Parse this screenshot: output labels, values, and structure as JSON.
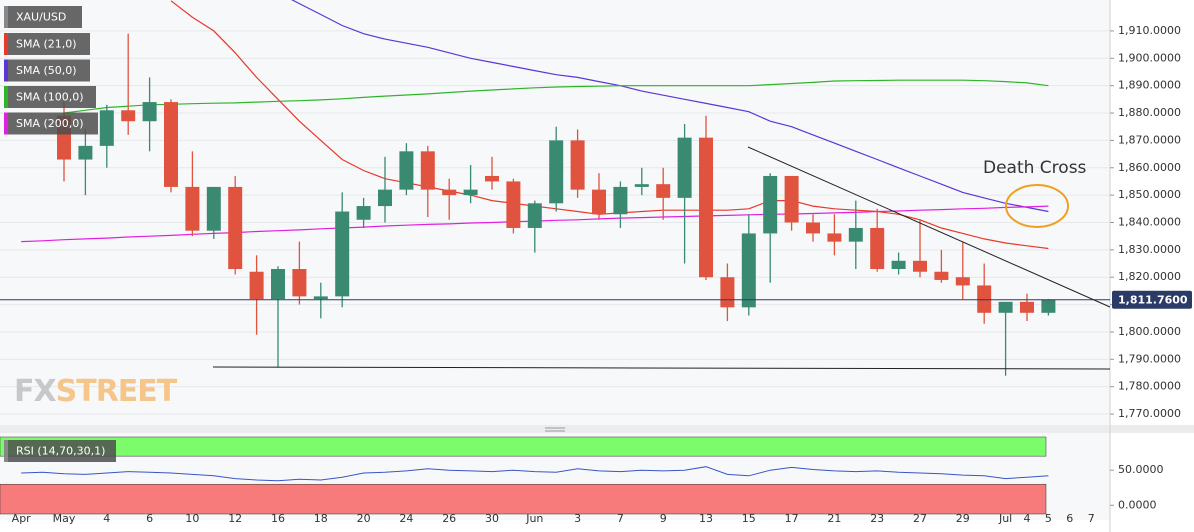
{
  "chart_data": {
    "type": "candlestick",
    "symbol": "XAU/USD",
    "watermark": [
      "FX",
      "STREET"
    ],
    "categories": [
      "Apr",
      null,
      "May",
      null,
      "4",
      null,
      "6",
      null,
      "10",
      null,
      "12",
      null,
      "16",
      null,
      "18",
      null,
      "20",
      null,
      "24",
      null,
      "26",
      null,
      "30",
      null,
      "Jun",
      null,
      "3",
      null,
      "7",
      null,
      "9",
      null,
      "13",
      null,
      "15",
      null,
      "17",
      null,
      "21",
      null,
      "23",
      null,
      "27",
      null,
      "29",
      null,
      "Jul",
      "4",
      "5",
      "6",
      "7"
    ],
    "open": [
      null,
      null,
      1879,
      1863,
      1868,
      1881,
      1877,
      1884,
      1853,
      1837,
      1853,
      1822,
      1812,
      1823,
      1812,
      1813,
      1841,
      1846,
      1852,
      1866,
      1852,
      1850,
      1857,
      1855,
      1838,
      1847,
      1870,
      1852,
      1843,
      1853,
      1854,
      1849,
      1871,
      1820,
      1809,
      1836,
      1857,
      1840,
      1836,
      1833,
      1838,
      1823,
      1826,
      1822,
      1820,
      1817,
      1807,
      1811,
      1807,
      null,
      null
    ],
    "high": [
      null,
      null,
      1884,
      1874,
      1883,
      1909,
      1893,
      1885,
      1866,
      1853,
      1857,
      1828,
      1824,
      1833,
      1818,
      1851,
      1849,
      1864,
      1869,
      1868,
      1856,
      1861,
      1864,
      1856,
      1848,
      1875,
      1874,
      1858,
      1855,
      1860,
      1860,
      1876,
      1879,
      1825,
      1843,
      1858,
      1857,
      1843,
      1843,
      1848,
      1845,
      1829,
      1841,
      1830,
      1833,
      1825,
      1811,
      1814,
      1812,
      null,
      null
    ],
    "low": [
      null,
      null,
      1855,
      1850,
      1860,
      1872,
      1866,
      1851,
      1835,
      1834,
      1821,
      1799,
      1787,
      1810,
      1805,
      1809,
      1838,
      1840,
      1850,
      1842,
      1841,
      1847,
      1852,
      1836,
      1829,
      1844,
      1849,
      1841,
      1838,
      1850,
      1841,
      1825,
      1819,
      1804,
      1806,
      1818,
      1837,
      1833,
      1828,
      1823,
      1822,
      1821,
      1820,
      1818,
      1812,
      1803,
      1784,
      1804,
      1806,
      null,
      null
    ],
    "close": [
      null,
      null,
      1863,
      1868,
      1881,
      1877,
      1884,
      1853,
      1837,
      1853,
      1823,
      1812,
      1823,
      1813,
      1813,
      1844,
      1846,
      1852,
      1866,
      1852,
      1850,
      1852,
      1855,
      1838,
      1847,
      1870,
      1852,
      1843,
      1853,
      1854,
      1849,
      1871,
      1820,
      1809,
      1836,
      1857,
      1840,
      1836,
      1833,
      1838,
      1823,
      1826,
      1822,
      1819,
      1817,
      1807,
      1811,
      1807,
      1811.76,
      null,
      null
    ],
    "up_color": "#3a8a72",
    "down_color": "#e0533f",
    "series": [
      {
        "name": "SMA (21,0)",
        "color": "#e8392b",
        "values": [
          null,
          null,
          null,
          null,
          null,
          null,
          null,
          1921,
          1915,
          1910,
          1902,
          1893,
          1885,
          1877,
          1870,
          1863,
          1859,
          1856,
          1854.5,
          1853,
          1851.5,
          1850,
          1848,
          1847,
          1846,
          1845,
          1844,
          1843,
          1843.5,
          1844,
          1844.5,
          1844.5,
          1844.5,
          1844.5,
          1845,
          1848,
          1848,
          1846,
          1845,
          1844.5,
          1844,
          1843,
          1841,
          1838,
          1836,
          1834,
          1832.5,
          1831.5,
          1830.5,
          null,
          null
        ]
      },
      {
        "name": "SMA (50,0)",
        "color": "#5b36d6",
        "values": [
          null,
          null,
          null,
          null,
          null,
          null,
          null,
          null,
          null,
          null,
          null,
          null,
          1924,
          1920,
          1916,
          1912,
          1909,
          1907,
          1905.5,
          1904,
          1902,
          1900,
          1898.5,
          1897,
          1895.5,
          1894,
          1893,
          1891.5,
          1890,
          1888,
          1886.5,
          1885,
          1883.5,
          1882,
          1880.5,
          1877,
          1875,
          1872,
          1869,
          1866,
          1863,
          1860,
          1857,
          1854,
          1851,
          1849,
          1847,
          1845.5,
          1844,
          null,
          null
        ]
      },
      {
        "name": "SMA (100,0)",
        "color": "#2fb52a",
        "values": [
          null,
          null,
          1880,
          1881,
          1882,
          1882.5,
          1883,
          1883.2,
          1883.4,
          1883.6,
          1883.7,
          1884,
          1884.3,
          1884.5,
          1884.8,
          1885.2,
          1885.7,
          1886.2,
          1886.6,
          1887,
          1887.5,
          1888,
          1888.4,
          1888.8,
          1889.2,
          1889.5,
          1889.7,
          1889.8,
          1890,
          1890,
          1890,
          1890,
          1890,
          1890,
          1890,
          1890.4,
          1890.8,
          1891.2,
          1891.7,
          1891.8,
          1891.9,
          1892,
          1892,
          1892,
          1892,
          1891.8,
          1891.5,
          1891,
          1890,
          null,
          null
        ]
      },
      {
        "name": "SMA (200,0)",
        "color": "#e020e0",
        "values": [
          1833,
          1833.3,
          1833.7,
          1834,
          1834.3,
          1834.7,
          1835,
          1835.3,
          1835.7,
          1836,
          1836.3,
          1836.7,
          1837,
          1837.3,
          1837.7,
          1838,
          1838.3,
          1838.7,
          1839,
          1839.3,
          1839.5,
          1839.8,
          1840,
          1840.3,
          1840.5,
          1840.8,
          1841,
          1841.3,
          1841.6,
          1841.8,
          1842,
          1842.2,
          1842.4,
          1842.6,
          1842.8,
          1843,
          1843.1,
          1843.3,
          1843.5,
          1843.7,
          1844,
          1844.2,
          1844.5,
          1844.7,
          1845,
          1845.2,
          1845.5,
          1845.7,
          1846,
          null,
          null
        ]
      }
    ],
    "ylim": [
      1766,
      1921.3
    ],
    "yticks": [
      {
        "value": 1770,
        "label": "1,770.0000"
      },
      {
        "value": 1780,
        "label": "1,780.0000"
      },
      {
        "value": 1790,
        "label": "1,790.0000"
      },
      {
        "value": 1800,
        "label": "1,800.0000"
      },
      {
        "value": 1810,
        "label": "1,810.0000"
      },
      {
        "value": 1820,
        "label": "1,820.0000"
      },
      {
        "value": 1830,
        "label": "1,830.0000"
      },
      {
        "value": 1840,
        "label": "1,840.0000"
      },
      {
        "value": 1850,
        "label": "1,850.0000"
      },
      {
        "value": 1860,
        "label": "1,860.0000"
      },
      {
        "value": 1870,
        "label": "1,870.0000"
      },
      {
        "value": 1880,
        "label": "1,880.0000"
      },
      {
        "value": 1890,
        "label": "1,890.0000"
      },
      {
        "value": 1900,
        "label": "1,900.0000"
      },
      {
        "value": 1910,
        "label": "1,910.0000"
      }
    ],
    "grid": true,
    "last_price": {
      "value": 1811.76,
      "label": "1,811.7600"
    },
    "annotations": [
      {
        "text": "Death Cross",
        "color": "#f0a020"
      }
    ],
    "rsi": {
      "name": "RSI (14,70,30,1)",
      "color": "#3a55c8",
      "overbought": 70,
      "oversold": 30,
      "overbought_color": "#7cfc6a",
      "oversold_color": "#f77b7b",
      "values": [
        46,
        47,
        45,
        44,
        46,
        48,
        47,
        46,
        44,
        42,
        38,
        36,
        35,
        37,
        36,
        40,
        46,
        47,
        49,
        52,
        50,
        49,
        48,
        50,
        48,
        47,
        52,
        49,
        48,
        50,
        49,
        50,
        55,
        44,
        42,
        50,
        54,
        51,
        49,
        48,
        49,
        47,
        46,
        45,
        43,
        42,
        38,
        40,
        42,
        null,
        null
      ],
      "ylim": [
        -21,
        103
      ],
      "yticks": [
        {
          "value": 0,
          "label": "0.0000"
        },
        {
          "value": 50,
          "label": "50.0000"
        }
      ]
    }
  }
}
